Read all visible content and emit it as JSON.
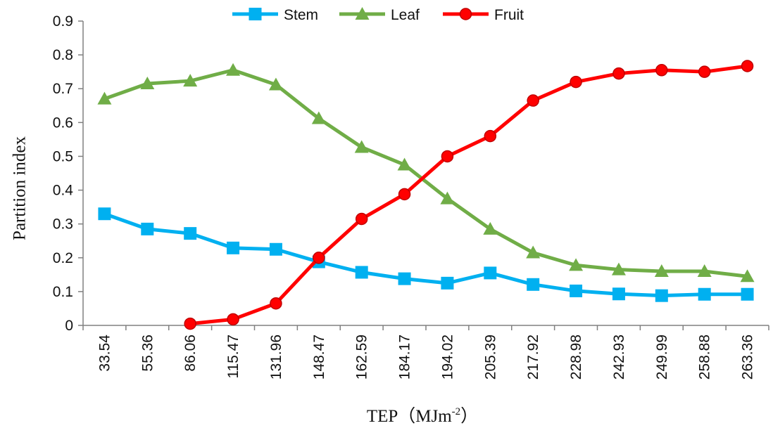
{
  "chart_data": {
    "type": "line",
    "title": "",
    "xlabel": "TEP（MJm",
    "xlabel_sup": "-2",
    "xlabel_end": "）",
    "ylabel": "Partition index",
    "ylim": [
      0,
      0.9
    ],
    "yticks": [
      "0",
      "0.1",
      "0.2",
      "0.3",
      "0.4",
      "0.5",
      "0.6",
      "0.7",
      "0.8",
      "0.9"
    ],
    "categories": [
      "33.54",
      "55.36",
      "86.06",
      "115.47",
      "131.96",
      "148.47",
      "162.59",
      "184.17",
      "194.02",
      "205.39",
      "217.92",
      "228.98",
      "242.93",
      "249.99",
      "258.88",
      "263.36"
    ],
    "grid": false,
    "legend": "top-center",
    "series": [
      {
        "name": "Stem",
        "color": "#00b0f0",
        "marker": "square",
        "values": [
          0.33,
          0.285,
          0.272,
          0.229,
          0.225,
          0.188,
          0.157,
          0.138,
          0.125,
          0.155,
          0.121,
          0.102,
          0.093,
          0.088,
          0.092,
          0.092
        ]
      },
      {
        "name": "Leaf",
        "color": "#70ad47",
        "marker": "triangle",
        "values": [
          0.67,
          0.715,
          0.723,
          0.755,
          0.712,
          0.612,
          0.527,
          0.475,
          0.375,
          0.285,
          0.215,
          0.178,
          0.165,
          0.16,
          0.16,
          0.145
        ]
      },
      {
        "name": "Fruit",
        "color": "#ff0000",
        "marker": "circle",
        "values": [
          null,
          null,
          0.005,
          0.018,
          0.065,
          0.2,
          0.315,
          0.388,
          0.5,
          0.56,
          0.665,
          0.72,
          0.745,
          0.755,
          0.75,
          0.767
        ]
      }
    ]
  }
}
